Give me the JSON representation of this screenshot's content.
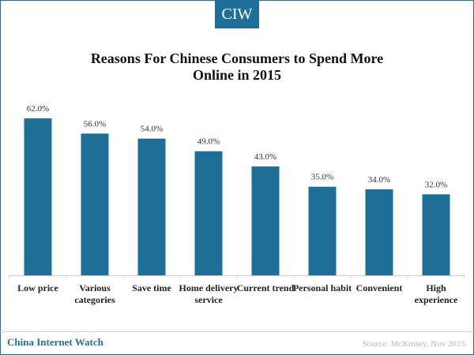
{
  "logo": "CIW",
  "footer": {
    "brand": "China Internet Watch",
    "source": "Source: McKinsey, Nov 2015"
  },
  "colors": {
    "bar": "#1f6f99",
    "accent": "#1f6f99"
  },
  "chart_data": {
    "type": "bar",
    "title": "Reasons For Chinese Consumers to Spend More Online in 2015",
    "title_lines": [
      "Reasons For Chinese Consumers to Spend More",
      "Online in 2015"
    ],
    "categories": [
      [
        "Low price"
      ],
      [
        "Various",
        "categories"
      ],
      [
        "Save time"
      ],
      [
        "Home delivery",
        "service"
      ],
      [
        "Current trend"
      ],
      [
        "Personal habit"
      ],
      [
        "Convenient"
      ],
      [
        "High",
        "experience"
      ]
    ],
    "values": [
      62.0,
      56.0,
      54.0,
      49.0,
      43.0,
      35.0,
      34.0,
      32.0
    ],
    "value_labels": [
      "62.0%",
      "56.0%",
      "54.0%",
      "49.0%",
      "43.0%",
      "35.0%",
      "34.0%",
      "32.0%"
    ],
    "ylim": [
      0,
      62
    ],
    "grid": false,
    "legend": "none"
  }
}
